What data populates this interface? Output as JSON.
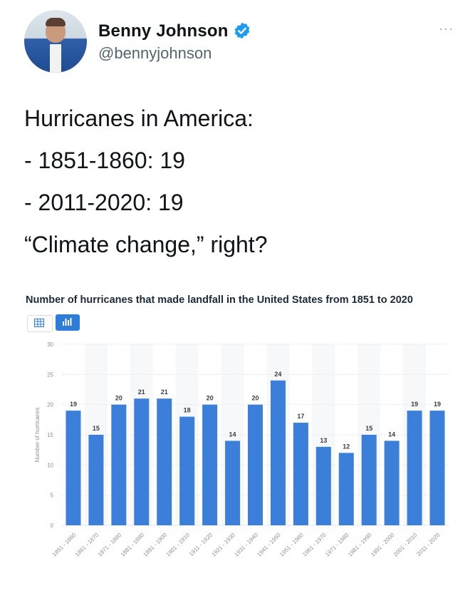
{
  "tweet": {
    "author_name": "Benny Johnson",
    "author_handle": "@bennyjohnson",
    "verified": true,
    "more_icon": "···",
    "lines": [
      "Hurricanes in America:",
      "- 1851-1860: 19",
      "- 2011-2020: 19",
      "“Climate change,” right?"
    ]
  },
  "colors": {
    "bar": "#3b7fdb",
    "verified": "#1d9bf0",
    "toggle_active": "#2d7dd8"
  },
  "chart_data": {
    "type": "bar",
    "title": "Number of hurricanes that made landfall in the United States from 1851 to 2020",
    "ylabel": "Number of hurricanes",
    "xlabel": "",
    "ylim": [
      0,
      30
    ],
    "yticks": [
      0,
      5,
      10,
      15,
      20,
      25,
      30
    ],
    "grid": true,
    "categories": [
      "1851 - 1860",
      "1861 - 1870",
      "1871 - 1880",
      "1881 - 1890",
      "1891 - 1900",
      "1901 - 1910",
      "1911 - 1920",
      "1921 - 1930",
      "1931 - 1940",
      "1941 - 1950",
      "1951 - 1960",
      "1961 - 1970",
      "1971 - 1980",
      "1981 - 1990",
      "1991 - 2000",
      "2001 - 2010",
      "2011 - 2020"
    ],
    "values": [
      19,
      15,
      20,
      21,
      21,
      18,
      20,
      14,
      20,
      24,
      17,
      13,
      12,
      15,
      14,
      19,
      19
    ]
  }
}
